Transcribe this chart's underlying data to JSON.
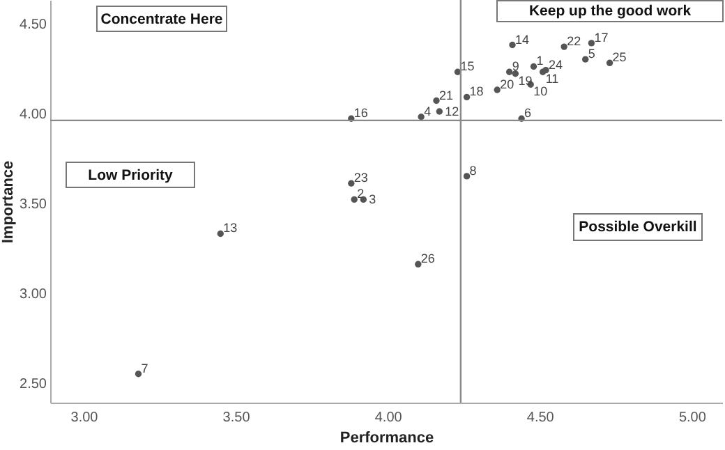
{
  "chart_data": {
    "type": "scatter",
    "xlabel": "Performance",
    "ylabel": "Importance",
    "xlim": [
      2.89,
      5.1
    ],
    "ylim": [
      2.39,
      4.63
    ],
    "xticks": [
      {
        "value": 3,
        "label": "3.00"
      },
      {
        "value": 3.5,
        "label": "3.50"
      },
      {
        "value": 4,
        "label": "4.00"
      },
      {
        "value": 4.5,
        "label": "4.50"
      },
      {
        "value": 5,
        "label": "5.00"
      }
    ],
    "yticks": [
      {
        "value": 2.5,
        "label": "2.50"
      },
      {
        "value": 3,
        "label": "3.00"
      },
      {
        "value": 3.5,
        "label": "3.50"
      },
      {
        "value": 4,
        "label": "4.00"
      },
      {
        "value": 4.5,
        "label": "4.50"
      }
    ],
    "marker": "circle",
    "grid": false,
    "series": [
      {
        "color": "#555555",
        "x": [
          4.48,
          3.89,
          3.92,
          4.11,
          4.65,
          4.44,
          3.18,
          4.26,
          4.4,
          4.47,
          4.51,
          4.17,
          3.45,
          4.41,
          4.23,
          3.88,
          4.67,
          4.26,
          4.42,
          4.36,
          4.16,
          4.58,
          3.88,
          4.52,
          4.73,
          4.1
        ],
        "values": [
          4.26,
          3.52,
          3.52,
          3.98,
          4.3,
          3.97,
          2.55,
          3.65,
          4.23,
          4.16,
          4.23,
          4.01,
          3.33,
          4.38,
          4.23,
          3.97,
          4.39,
          4.09,
          4.22,
          4.13,
          4.07,
          4.37,
          3.61,
          4.24,
          4.28,
          3.16
        ]
      }
    ],
    "ref_lines": [
      {
        "axis": "x",
        "value": 4.24,
        "color": "#888888"
      },
      {
        "axis": "y",
        "value": 3.96,
        "color": "#888888"
      }
    ],
    "annotations": [
      "Concentrate Here",
      "Keep up the good work",
      "Low Priority",
      "Possible Overkill",
      {
        "text": "1",
        "x": 4.48,
        "y": 4.26
      },
      {
        "text": "2",
        "x": 3.89,
        "y": 3.52
      },
      {
        "text": "3",
        "x": 3.92,
        "y": 3.52
      },
      {
        "text": "4",
        "x": 4.11,
        "y": 3.98
      },
      {
        "text": "5",
        "x": 4.65,
        "y": 4.3
      },
      {
        "text": "6",
        "x": 4.44,
        "y": 3.97
      },
      {
        "text": "7",
        "x": 3.18,
        "y": 2.55
      },
      {
        "text": "8",
        "x": 4.26,
        "y": 3.65
      },
      {
        "text": "9",
        "x": 4.4,
        "y": 4.23
      },
      {
        "text": "10",
        "x": 4.47,
        "y": 4.16
      },
      {
        "text": "11",
        "x": 4.51,
        "y": 4.23
      },
      {
        "text": "12",
        "x": 4.17,
        "y": 4.01
      },
      {
        "text": "13",
        "x": 3.45,
        "y": 3.33
      },
      {
        "text": "14",
        "x": 4.41,
        "y": 4.38
      },
      {
        "text": "15",
        "x": 4.23,
        "y": 4.23
      },
      {
        "text": "16",
        "x": 3.88,
        "y": 3.97
      },
      {
        "text": "17",
        "x": 4.67,
        "y": 4.39
      },
      {
        "text": "18",
        "x": 4.26,
        "y": 4.09
      },
      {
        "text": "19",
        "x": 4.42,
        "y": 4.22
      },
      {
        "text": "20",
        "x": 4.36,
        "y": 4.13
      },
      {
        "text": "21",
        "x": 4.16,
        "y": 4.07
      },
      {
        "text": "22",
        "x": 4.58,
        "y": 4.37
      },
      {
        "text": "23",
        "x": 3.88,
        "y": 3.61
      },
      {
        "text": "24",
        "x": 4.52,
        "y": 4.24
      },
      {
        "text": "25",
        "x": 4.73,
        "y": 4.28
      },
      {
        "text": "26",
        "x": 4.1,
        "y": 3.16
      }
    ]
  }
}
